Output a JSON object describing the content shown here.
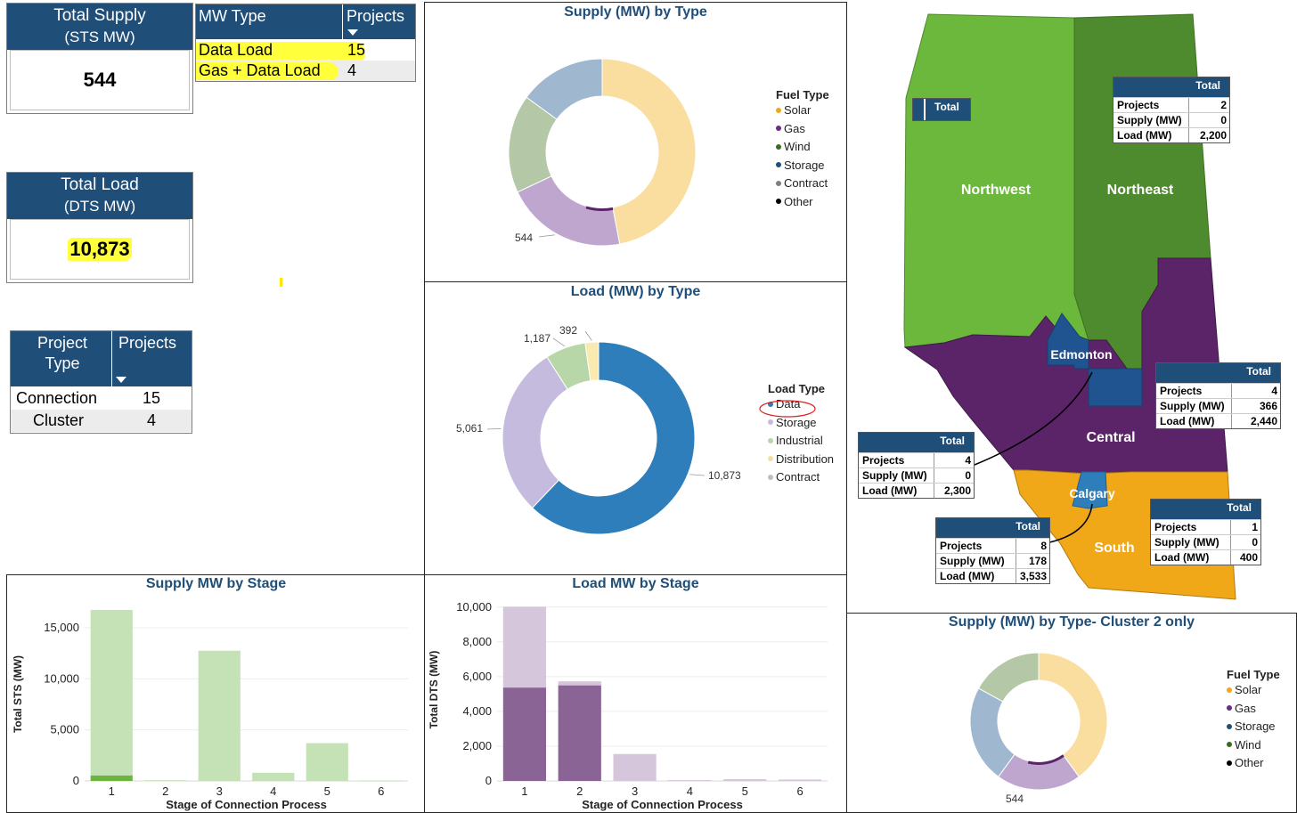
{
  "kpis": {
    "supply": {
      "title_1": "Total Supply",
      "title_2": "(STS MW)",
      "value": "544"
    },
    "load": {
      "title_1": "Total Load",
      "title_2": "(DTS MW)",
      "value": "10,873"
    }
  },
  "mw_type_table": {
    "headers": [
      "MW Type",
      "Projects"
    ],
    "rows": [
      {
        "type": "Data Load",
        "projects": "15"
      },
      {
        "type": "Gas + Data Load",
        "projects": "4"
      }
    ]
  },
  "project_type_table": {
    "headers": [
      "Project Type",
      "Projects"
    ],
    "rows": [
      {
        "type": "Connection",
        "projects": "15"
      },
      {
        "type": "Cluster",
        "projects": "4"
      }
    ]
  },
  "colors": {
    "header_blue": "#1f4e79",
    "solar": "#f9dea0",
    "gas": "#bfa6cf",
    "wind": "#b4c7a6",
    "storage": "#9fb7cf",
    "data": "#2e7ebb",
    "load_storage": "#c5bbdf",
    "industrial": "#b7d7a8",
    "distribution": "#faeab0",
    "northwest": "#6bb83d",
    "northeast": "#4e8a2e",
    "central": "#5b2468",
    "south": "#f0a818",
    "city": "#1f5490",
    "calgary": "#2e7ebb"
  },
  "chart_data": [
    {
      "id": "supply_by_type",
      "type": "pie",
      "title": "Supply (MW) by Type",
      "legend_title": "Fuel Type",
      "legend": [
        {
          "name": "Solar",
          "color": "#f2a71b"
        },
        {
          "name": "Gas",
          "color": "#6a2c86"
        },
        {
          "name": "Wind",
          "color": "#386d1f"
        },
        {
          "name": "Storage",
          "color": "#1f4e79"
        },
        {
          "name": "Contract",
          "color": "#7f7f7f"
        },
        {
          "name": "Other",
          "color": "#000000"
        }
      ],
      "slices": [
        {
          "name": "Solar",
          "share": 0.47,
          "color": "#f9dea0"
        },
        {
          "name": "Gas",
          "share": 0.21,
          "color": "#bfa6cf"
        },
        {
          "name": "Wind",
          "share": 0.17,
          "color": "#b4c7a6"
        },
        {
          "name": "Storage",
          "share": 0.15,
          "color": "#9fb7cf"
        }
      ],
      "highlight": {
        "name": "Gas",
        "value": 544,
        "label": "544",
        "share": 0.075,
        "color": "#5b2468"
      }
    },
    {
      "id": "load_by_type",
      "type": "pie",
      "title": "Load (MW) by Type",
      "legend_title": "Load Type",
      "legend": [
        {
          "name": "Data",
          "color": "#2e7ebb"
        },
        {
          "name": "Storage",
          "color": "#c5bbdf"
        },
        {
          "name": "Industrial",
          "color": "#b7d7a8"
        },
        {
          "name": "Distribution",
          "color": "#f6dfa0"
        },
        {
          "name": "Contract",
          "color": "#bfbfbf"
        }
      ],
      "slices": [
        {
          "name": "Data",
          "value": 10873,
          "label": "10,873",
          "color": "#2e7ebb"
        },
        {
          "name": "Storage",
          "value": 5061,
          "label": "5,061",
          "color": "#c5bbdf"
        },
        {
          "name": "Industrial",
          "value": 1187,
          "label": "1,187",
          "color": "#b7d7a8"
        },
        {
          "name": "Distribution",
          "value": 392,
          "label": "392",
          "color": "#faeab0"
        }
      ]
    },
    {
      "id": "supply_by_type_cluster2",
      "type": "pie",
      "title": "Supply (MW) by Type- Cluster 2 only",
      "legend_title": "Fuel Type",
      "legend": [
        {
          "name": "Solar",
          "color": "#f2a71b"
        },
        {
          "name": "Gas",
          "color": "#6a2c86"
        },
        {
          "name": "Storage",
          "color": "#1f4e79"
        },
        {
          "name": "Wind",
          "color": "#386d1f"
        },
        {
          "name": "Other",
          "color": "#000000"
        }
      ],
      "slices": [
        {
          "name": "Solar",
          "share": 0.4,
          "color": "#f9dea0"
        },
        {
          "name": "Gas",
          "share": 0.2,
          "color": "#bfa6cf"
        },
        {
          "name": "Storage",
          "share": 0.23,
          "color": "#9fb7cf"
        },
        {
          "name": "Wind",
          "share": 0.17,
          "color": "#b4c7a6"
        }
      ],
      "highlight": {
        "name": "Gas",
        "value": 544,
        "label": "544",
        "share": 0.14,
        "color": "#5b2468"
      }
    },
    {
      "id": "supply_mw_by_stage",
      "type": "bar",
      "title": "Supply MW by Stage",
      "xlabel": "Stage of Connection Process",
      "ylabel": "Total STS (MW)",
      "categories": [
        "1",
        "2",
        "3",
        "4",
        "5",
        "6"
      ],
      "ylim": [
        0,
        17000
      ],
      "yticks": [
        0,
        5000,
        10000,
        15000
      ],
      "ytick_labels": [
        "0",
        "5,000",
        "10,000",
        "15,000"
      ],
      "series": [
        {
          "values": [
            544,
            0,
            0,
            0,
            0,
            0
          ],
          "color": "#6cb33f"
        },
        {
          "values": [
            16200,
            70,
            12750,
            800,
            3700,
            50
          ],
          "color": "#c4e2b5"
        }
      ]
    },
    {
      "id": "load_mw_by_stage",
      "type": "bar",
      "title": "Load MW by Stage",
      "xlabel": "Stage of Connection Process",
      "ylabel": "Total DTS (MW)",
      "categories": [
        "1",
        "2",
        "3",
        "4",
        "5",
        "6"
      ],
      "ylim": [
        0,
        10500
      ],
      "yticks": [
        0,
        2000,
        4000,
        6000,
        8000,
        10000
      ],
      "ytick_labels": [
        "0",
        "2,000",
        "4,000",
        "6,000",
        "8,000",
        "10,000"
      ],
      "series": [
        {
          "values": [
            5373,
            5500,
            0,
            0,
            0,
            0
          ],
          "color": "#8b6496"
        },
        {
          "values": [
            4650,
            230,
            1550,
            50,
            100,
            80
          ],
          "color": "#d5c6dc"
        }
      ]
    }
  ],
  "map": {
    "regions": {
      "northwest": "Northwest",
      "northeast": "Northeast",
      "central": "Central",
      "south": "South",
      "edmonton": "Edmonton",
      "calgary": "Calgary"
    },
    "total_tag": "Total",
    "boxes": [
      {
        "id": "northeast",
        "header": "Total",
        "rows": [
          {
            "k": "Projects",
            "v": "2"
          },
          {
            "k": "Supply (MW)",
            "v": "0"
          },
          {
            "k": "Load (MW)",
            "v": "2,200"
          }
        ]
      },
      {
        "id": "central",
        "header": "Total",
        "rows": [
          {
            "k": "Projects",
            "v": "4"
          },
          {
            "k": "Supply (MW)",
            "v": "366"
          },
          {
            "k": "Load (MW)",
            "v": "2,440"
          }
        ]
      },
      {
        "id": "edmonton",
        "header": "Total",
        "rows": [
          {
            "k": "Projects",
            "v": "4"
          },
          {
            "k": "Supply (MW)",
            "v": "0"
          },
          {
            "k": "Load (MW)",
            "v": "2,300"
          }
        ]
      },
      {
        "id": "calgary",
        "header": "Total",
        "rows": [
          {
            "k": "Projects",
            "v": "8"
          },
          {
            "k": "Supply (MW)",
            "v": "178"
          },
          {
            "k": "Load (MW)",
            "v": "3,533"
          }
        ]
      },
      {
        "id": "south",
        "header": "Total",
        "rows": [
          {
            "k": "Projects",
            "v": "1"
          },
          {
            "k": "Supply (MW)",
            "v": "0"
          },
          {
            "k": "Load (MW)",
            "v": "400"
          }
        ]
      }
    ]
  }
}
